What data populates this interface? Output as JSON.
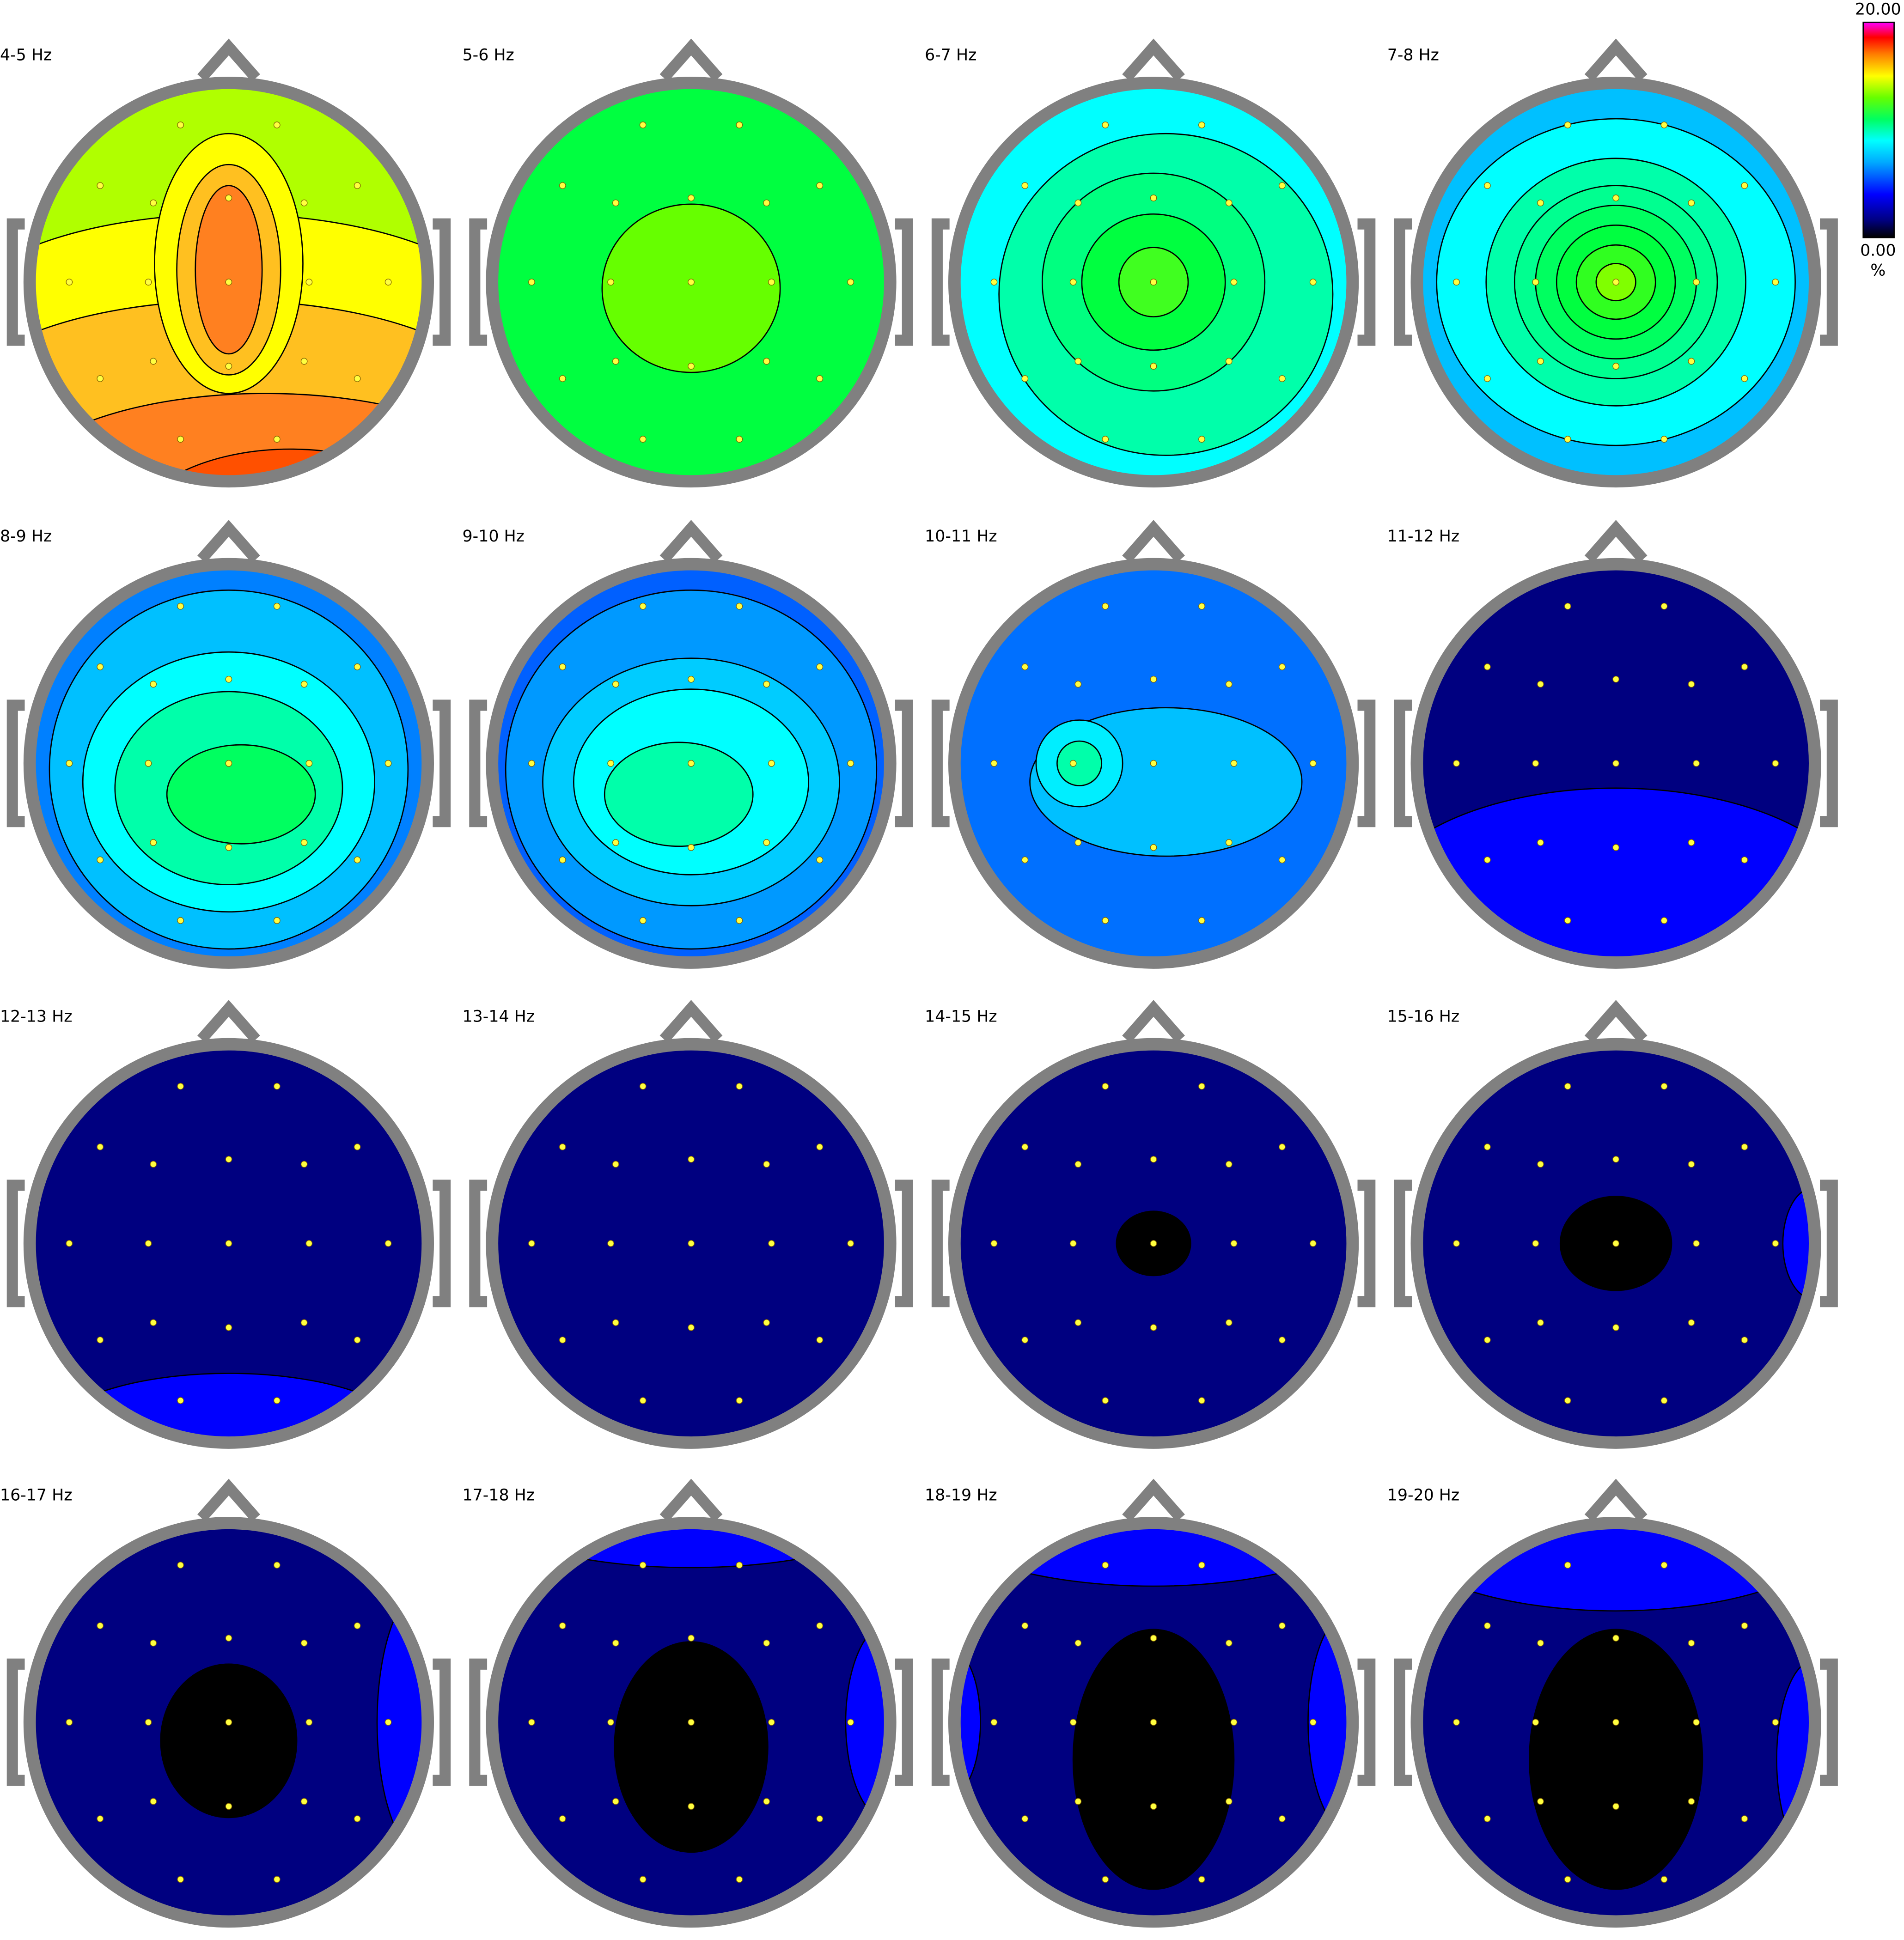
{
  "maps": [
    {
      "label": "4-5 Hz"
    },
    {
      "label": "5-6 Hz"
    },
    {
      "label": "6-7 Hz"
    },
    {
      "label": "7-8 Hz"
    },
    {
      "label": "8-9 Hz"
    },
    {
      "label": "9-10 Hz"
    },
    {
      "label": "10-11 Hz"
    },
    {
      "label": "11-12 Hz"
    },
    {
      "label": "12-13 Hz"
    },
    {
      "label": "13-14 Hz"
    },
    {
      "label": "14-15 Hz"
    },
    {
      "label": "15-16 Hz"
    },
    {
      "label": "16-17 Hz"
    },
    {
      "label": "17-18 Hz"
    },
    {
      "label": "18-19 Hz"
    },
    {
      "label": "19-20 Hz"
    }
  ],
  "colorbar": {
    "max_label": "20.00",
    "min_label": "0.00",
    "unit": "%"
  }
}
